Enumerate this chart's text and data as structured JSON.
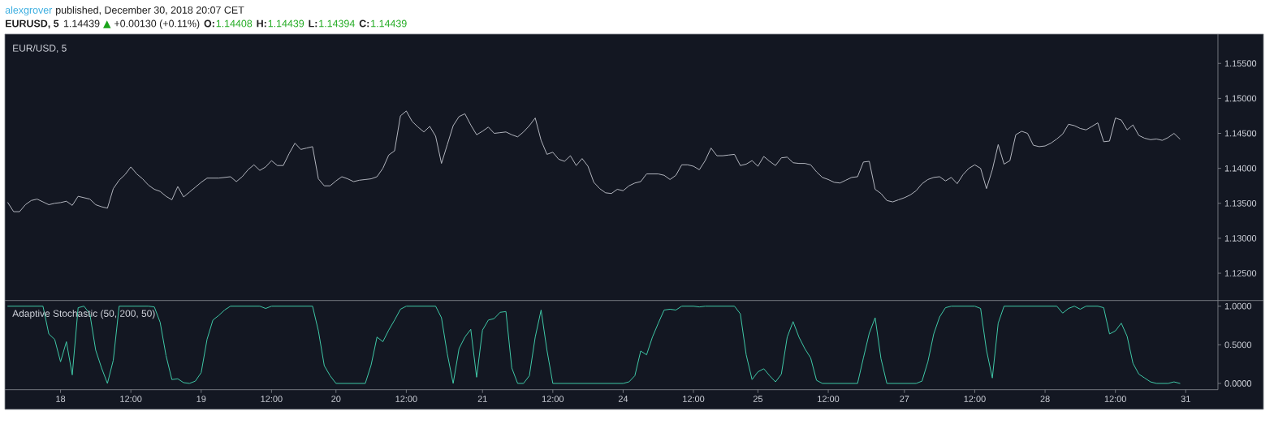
{
  "chart_data": [
    {
      "type": "line",
      "title": "EUR/USD, 5",
      "annotations": [
        "alexgrover",
        "published, December 30, 2018 20:07 CET",
        "EURUSD, 5",
        "1.14439",
        "▲",
        "+0.00130 (+0.11%)",
        "O:",
        "1.14408",
        "H:",
        "1.14439",
        "L:",
        "1.14394",
        "C:",
        "1.14439"
      ],
      "categories": [
        null,
        null,
        null,
        null,
        null,
        null,
        null,
        null,
        null,
        null,
        null,
        null,
        null,
        null,
        null,
        null,
        null,
        null,
        null,
        null,
        null,
        null,
        null,
        null,
        null,
        null,
        null,
        null,
        null,
        null,
        null,
        null,
        null,
        null,
        null,
        null,
        null,
        null,
        null,
        null,
        null,
        null,
        null,
        null,
        null,
        null,
        null,
        null,
        null,
        null,
        null,
        null,
        null,
        null,
        null,
        null,
        null,
        null,
        null,
        null,
        null,
        null,
        null,
        null,
        null,
        null,
        null,
        null,
        null,
        null,
        null,
        null,
        null,
        null,
        null,
        null,
        null,
        null,
        null,
        null,
        null,
        null,
        null,
        null,
        null,
        null,
        null,
        null,
        null,
        null,
        null,
        null,
        null,
        null,
        null,
        null,
        null,
        null,
        null,
        null,
        null,
        null,
        null,
        null,
        null,
        null,
        null,
        null,
        null,
        null,
        null,
        null,
        null,
        null,
        null,
        null,
        null,
        null,
        null,
        null,
        null,
        null,
        null,
        null,
        null,
        null,
        null,
        null,
        null,
        null,
        null,
        null,
        null,
        null,
        null,
        null,
        null,
        null,
        null,
        null,
        null,
        null,
        null,
        null,
        null,
        null,
        null,
        null,
        null,
        null,
        null,
        null,
        null,
        null,
        null,
        null,
        null,
        null,
        null,
        null,
        null,
        null,
        null,
        null,
        null,
        null,
        null,
        null,
        null,
        null,
        null,
        null,
        null,
        null,
        null,
        null,
        null,
        null,
        null,
        null,
        null,
        null,
        null,
        null,
        null,
        null,
        null,
        null,
        null,
        null,
        null,
        null,
        null,
        null,
        null,
        null,
        null,
        null,
        null,
        null,
        null,
        null,
        null,
        null,
        null,
        null,
        null
      ],
      "values": [
        1.1351,
        1.1338,
        1.1338,
        1.1348,
        1.1354,
        1.1356,
        1.1352,
        1.1348,
        1.135,
        1.1351,
        1.1353,
        1.1347,
        1.136,
        1.1358,
        1.1356,
        1.1348,
        1.1345,
        1.1343,
        1.1371,
        1.1383,
        1.1391,
        1.1402,
        1.1392,
        1.1385,
        1.1376,
        1.137,
        1.1367,
        1.136,
        1.1355,
        1.1374,
        1.1359,
        1.1366,
        1.1373,
        1.138,
        1.1386,
        1.1386,
        1.1386,
        1.1387,
        1.1388,
        1.1381,
        1.1388,
        1.1398,
        1.1405,
        1.1397,
        1.1402,
        1.1411,
        1.1404,
        1.1404,
        1.1421,
        1.1436,
        1.1427,
        1.1429,
        1.1431,
        1.1385,
        1.1375,
        1.1375,
        1.1382,
        1.1388,
        1.1385,
        1.1381,
        1.1383,
        1.1384,
        1.1385,
        1.1388,
        1.14,
        1.1419,
        1.1425,
        1.1475,
        1.1482,
        1.1467,
        1.1459,
        1.1452,
        1.146,
        1.1446,
        1.1407,
        1.1434,
        1.1461,
        1.1474,
        1.1478,
        1.1462,
        1.1448,
        1.1453,
        1.1459,
        1.145,
        1.1451,
        1.1452,
        1.1448,
        1.1445,
        1.1452,
        1.1461,
        1.1472,
        1.144,
        1.142,
        1.1423,
        1.1413,
        1.141,
        1.1418,
        1.1404,
        1.1414,
        1.1403,
        1.138,
        1.1371,
        1.1365,
        1.1364,
        1.137,
        1.1368,
        1.1375,
        1.1379,
        1.1381,
        1.1392,
        1.1392,
        1.1392,
        1.139,
        1.1384,
        1.139,
        1.1405,
        1.1405,
        1.1403,
        1.1398,
        1.1411,
        1.1429,
        1.1418,
        1.1418,
        1.1419,
        1.142,
        1.1404,
        1.1406,
        1.1411,
        1.1403,
        1.1417,
        1.141,
        1.1404,
        1.1415,
        1.1416,
        1.1408,
        1.1407,
        1.1407,
        1.1405,
        1.1395,
        1.1387,
        1.1384,
        1.138,
        1.1379,
        1.1383,
        1.1387,
        1.1388,
        1.1409,
        1.141,
        1.137,
        1.1364,
        1.1354,
        1.1352,
        1.1355,
        1.1358,
        1.1362,
        1.1368,
        1.1378,
        1.1384,
        1.1387,
        1.1388,
        1.1382,
        1.1387,
        1.1378,
        1.1391,
        1.14,
        1.1405,
        1.14,
        1.1371,
        1.1398,
        1.1434,
        1.1406,
        1.1411,
        1.1448,
        1.1453,
        1.145,
        1.1433,
        1.1431,
        1.1432,
        1.1436,
        1.1442,
        1.1449,
        1.1463,
        1.1461,
        1.1457,
        1.1455,
        1.146,
        1.1465,
        1.1438,
        1.1439,
        1.1472,
        1.1469,
        1.1455,
        1.1462,
        1.1447,
        1.1443,
        1.1441,
        1.1442,
        1.144,
        1.1444,
        1.145,
        1.1442,
        null,
        null,
        null,
        null,
        null,
        null
      ],
      "color": "#b2b5be",
      "ylim": [
        1.1211,
        1.1592
      ],
      "yticks": [
        {
          "value": 1.125,
          "label": "1.12500"
        },
        {
          "value": 1.13,
          "label": "1.13000"
        },
        {
          "value": 1.135,
          "label": "1.13500"
        },
        {
          "value": 1.14,
          "label": "1.14000"
        },
        {
          "value": 1.145,
          "label": "1.14500"
        },
        {
          "value": 1.15,
          "label": "1.15000"
        },
        {
          "value": 1.155,
          "label": "1.15500"
        }
      ],
      "tick_labels": "y"
    },
    {
      "type": "line",
      "title": "Adaptive Stochastic (50, 200, 50)",
      "categories": [
        null,
        null,
        null,
        null,
        null,
        null,
        null,
        null,
        null,
        "18",
        null,
        null,
        null,
        null,
        null,
        null,
        null,
        null,
        null,
        null,
        null,
        "12:00",
        null,
        null,
        null,
        null,
        null,
        null,
        null,
        null,
        null,
        null,
        null,
        "19",
        null,
        null,
        null,
        null,
        null,
        null,
        null,
        null,
        null,
        null,
        null,
        "12:00",
        null,
        null,
        null,
        null,
        null,
        null,
        null,
        null,
        null,
        null,
        "20",
        null,
        null,
        null,
        null,
        null,
        null,
        null,
        null,
        null,
        null,
        null,
        "12:00",
        null,
        null,
        null,
        null,
        null,
        null,
        null,
        null,
        null,
        null,
        null,
        null,
        "21",
        null,
        null,
        null,
        null,
        null,
        null,
        null,
        null,
        null,
        null,
        null,
        "12:00",
        null,
        null,
        null,
        null,
        null,
        null,
        null,
        null,
        null,
        null,
        null,
        "24",
        null,
        null,
        null,
        null,
        null,
        null,
        null,
        null,
        null,
        null,
        null,
        "12:00",
        null,
        null,
        null,
        null,
        null,
        null,
        null,
        null,
        null,
        null,
        "25",
        null,
        null,
        null,
        null,
        null,
        null,
        null,
        null,
        null,
        null,
        null,
        "12:00",
        null,
        null,
        null,
        null,
        null,
        null,
        null,
        null,
        null,
        null,
        null,
        null,
        "27",
        null,
        null,
        null,
        null,
        null,
        null,
        null,
        null,
        null,
        null,
        null,
        "12:00",
        null,
        null,
        null,
        null,
        null,
        null,
        null,
        null,
        null,
        null,
        null,
        "28",
        null,
        null,
        null,
        null,
        null,
        null,
        null,
        null,
        null,
        null,
        null,
        "12:00",
        null,
        null,
        null,
        null,
        null,
        null,
        null,
        null,
        null,
        null,
        null,
        "31",
        null,
        null,
        null,
        null,
        null
      ],
      "values": [
        1.0,
        1.0,
        1.0,
        1.0,
        1.0,
        1.0,
        1.0,
        0.64,
        0.57,
        0.28,
        0.54,
        0.11,
        0.98,
        1.0,
        0.9,
        0.43,
        0.2,
        0.0,
        0.3,
        1.0,
        1.0,
        1.0,
        1.0,
        1.0,
        1.0,
        0.99,
        0.79,
        0.36,
        0.05,
        0.06,
        0.01,
        0.0,
        0.03,
        0.14,
        0.57,
        0.82,
        0.88,
        0.95,
        1.0,
        1.0,
        1.0,
        1.0,
        1.0,
        1.0,
        0.97,
        1.0,
        1.0,
        1.0,
        1.0,
        1.0,
        1.0,
        1.0,
        1.0,
        0.68,
        0.23,
        0.1,
        0.0,
        0.0,
        0.0,
        0.0,
        0.0,
        0.0,
        0.24,
        0.6,
        0.54,
        0.69,
        0.82,
        0.96,
        1.0,
        1.0,
        1.0,
        1.0,
        1.0,
        1.0,
        0.85,
        0.38,
        0.0,
        0.45,
        0.6,
        0.7,
        0.08,
        0.69,
        0.82,
        0.84,
        0.92,
        0.93,
        0.2,
        0.0,
        0.0,
        0.1,
        0.6,
        0.95,
        0.43,
        0.0,
        0.0,
        0.0,
        0.0,
        0.0,
        0.0,
        0.0,
        0.0,
        0.0,
        0.0,
        0.0,
        0.0,
        0.0,
        0.02,
        0.1,
        0.42,
        0.37,
        0.6,
        0.78,
        0.95,
        0.96,
        0.95,
        1.0,
        1.0,
        1.0,
        0.99,
        1.0,
        1.0,
        1.0,
        1.0,
        1.0,
        1.0,
        0.9,
        0.37,
        0.05,
        0.15,
        0.19,
        0.1,
        0.02,
        0.12,
        0.6,
        0.8,
        0.6,
        0.45,
        0.33,
        0.04,
        0.0,
        0.0,
        0.0,
        0.0,
        0.0,
        0.0,
        0.0,
        0.33,
        0.65,
        0.85,
        0.32,
        0.0,
        0.0,
        0.0,
        0.0,
        0.0,
        0.0,
        0.03,
        0.28,
        0.64,
        0.86,
        0.98,
        1.0,
        1.0,
        1.0,
        1.0,
        1.0,
        0.97,
        0.43,
        0.07,
        0.78,
        1.0,
        1.0,
        1.0,
        1.0,
        1.0,
        1.0,
        1.0,
        1.0,
        1.0,
        1.0,
        0.91,
        0.97,
        1.0,
        0.96,
        1.0,
        1.0,
        1.0,
        0.98,
        0.64,
        0.68,
        0.78,
        0.61,
        0.26,
        0.12,
        0.07,
        0.02,
        0.0,
        0.0,
        0.0,
        0.02,
        0.0,
        null,
        null,
        null,
        null,
        null,
        null
      ],
      "color": "#3fc8a7",
      "ylim": [
        -0.081,
        1.073
      ],
      "yticks": [
        {
          "value": 0,
          "label": "0.0000"
        },
        {
          "value": 0.5,
          "label": "0.5000"
        },
        {
          "value": 1,
          "label": "1.0000"
        }
      ]
    }
  ]
}
